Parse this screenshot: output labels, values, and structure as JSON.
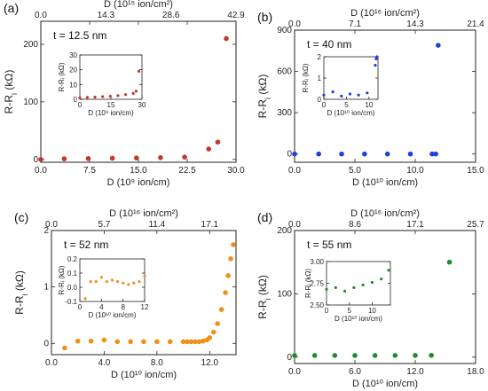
{
  "figure": {
    "panels": [
      {
        "id": "a",
        "label": "(a)",
        "thickness_label": "t = 12.5 nm",
        "color": "#c0392b",
        "ylabel_main": "R-R",
        "ylabel_sub": "i",
        "ylabel_unit": " (kΩ)",
        "xlabel": "D (10⁹ ion/cm)",
        "top_label": "D (10¹⁵ ion/cm²)",
        "xlim": [
          0,
          30
        ],
        "ylim": [
          -5,
          240
        ],
        "xticks": [
          0,
          7.5,
          15,
          22.5,
          30
        ],
        "xtick_labels": [
          "0.0",
          "7.5",
          "15.0",
          "22.5",
          "30.0"
        ],
        "yticks": [
          0,
          100,
          200
        ],
        "ytick_labels": [
          "0",
          "100",
          "200"
        ],
        "top_tick_labels": [
          "0.0",
          "14.3",
          "28.6",
          "42.9"
        ],
        "top_tick_x": [
          0,
          10,
          20,
          30
        ],
        "points": [
          [
            0,
            0
          ],
          [
            3.6,
            1
          ],
          [
            7.3,
            1.5
          ],
          [
            11,
            2
          ],
          [
            14.7,
            2.5
          ],
          [
            18.4,
            3
          ],
          [
            22.1,
            4
          ],
          [
            25.8,
            18
          ],
          [
            27.2,
            30
          ],
          [
            28.5,
            210
          ]
        ],
        "inset": {
          "xlim": [
            0,
            30
          ],
          "ylim": [
            0,
            30
          ],
          "xticks": [
            0,
            15,
            30
          ],
          "xtick_labels": [
            "0",
            "15",
            "30"
          ],
          "yticks": [
            0,
            10,
            20,
            30
          ],
          "ytick_labels": [
            "0",
            "10",
            "20",
            "30"
          ],
          "xlabel": "D (10⁹ ion/cm)",
          "ylabel": "R-Rᵢ (kΩ)",
          "points": [
            [
              0,
              1
            ],
            [
              3.6,
              1.3
            ],
            [
              7.3,
              1.5
            ],
            [
              11,
              1.8
            ],
            [
              14.7,
              2.1
            ],
            [
              18.4,
              2.5
            ],
            [
              22.1,
              3.2
            ],
            [
              25.8,
              4
            ],
            [
              27.2,
              5.5
            ],
            [
              28.5,
              19
            ]
          ]
        }
      },
      {
        "id": "b",
        "label": "(b)",
        "thickness_label": "t = 40 nm",
        "color": "#1f3fd8",
        "ylabel_main": "R-R",
        "ylabel_sub": "i",
        "ylabel_unit": " (kΩ)",
        "xlabel": "D (10¹⁰ ion/cm)",
        "top_label": "D (10¹⁶ ion/cm²)",
        "xlim": [
          0,
          15
        ],
        "ylim": [
          -60,
          900
        ],
        "xticks": [
          0,
          5,
          10,
          15
        ],
        "xtick_labels": [
          "0.0",
          "5.0",
          "10.0",
          "15.0"
        ],
        "yticks": [
          0,
          300,
          600,
          900
        ],
        "ytick_labels": [
          "0",
          "300",
          "600",
          "900"
        ],
        "top_tick_labels": [
          "0.0",
          "7.1",
          "14.3",
          "21.4"
        ],
        "top_tick_x": [
          0,
          5,
          10,
          15
        ],
        "points": [
          [
            0,
            0
          ],
          [
            2,
            0
          ],
          [
            3.9,
            0
          ],
          [
            5.8,
            0
          ],
          [
            7.7,
            0
          ],
          [
            9.6,
            0
          ],
          [
            11.4,
            0
          ],
          [
            11.7,
            0
          ],
          [
            11.9,
            790
          ]
        ],
        "inset": {
          "xlim": [
            0,
            12
          ],
          "ylim": [
            0,
            2
          ],
          "xticks": [
            0,
            5,
            10
          ],
          "xtick_labels": [
            "0",
            "5",
            "10"
          ],
          "yticks": [
            0,
            1,
            2
          ],
          "ytick_labels": [
            "0",
            "1",
            "2"
          ],
          "xlabel": "D (10¹⁰ ion/cm)",
          "ylabel": "R-Rᵢ (kΩ)",
          "points": [
            [
              0,
              0.2
            ],
            [
              2,
              0.35
            ],
            [
              3.9,
              0.15
            ],
            [
              5.8,
              0.25
            ],
            [
              7.7,
              0.2
            ],
            [
              9.6,
              0.3
            ],
            [
              11.4,
              1.6
            ],
            [
              11.6,
              1.9
            ],
            [
              11.8,
              2.0
            ]
          ]
        }
      },
      {
        "id": "c",
        "label": "(c)",
        "thickness_label": "t = 52 nm",
        "color": "#f0901a",
        "ylabel_main": "R-R",
        "ylabel_sub": "i",
        "ylabel_unit": " (kΩ)",
        "xlabel": "D (10¹⁰ ion/cm)",
        "top_label": "D (10¹⁶ ion/cm²)",
        "xlim": [
          0,
          14
        ],
        "ylim": [
          -0.2,
          2
        ],
        "xticks": [
          0,
          4,
          8,
          12
        ],
        "xtick_labels": [
          "0.0",
          "4.0",
          "8.0",
          "12.0"
        ],
        "yticks": [
          0,
          1,
          2
        ],
        "ytick_labels": [
          "0",
          "1",
          "2"
        ],
        "top_tick_labels": [
          "0.0",
          "5.7",
          "11.4",
          "17.1"
        ],
        "top_tick_x": [
          0,
          4,
          8,
          12
        ],
        "points": [
          [
            1,
            -0.08
          ],
          [
            2,
            0.04
          ],
          [
            3,
            0.04
          ],
          [
            4,
            0.06
          ],
          [
            5,
            0.03
          ],
          [
            6,
            0.03
          ],
          [
            7,
            0.03
          ],
          [
            8,
            0.03
          ],
          [
            9,
            0.03
          ],
          [
            10,
            0.03
          ],
          [
            10.3,
            0.03
          ],
          [
            10.6,
            0.03
          ],
          [
            10.9,
            0.03
          ],
          [
            11.2,
            0.03
          ],
          [
            11.5,
            0.04
          ],
          [
            11.8,
            0.06
          ],
          [
            12,
            0.1
          ],
          [
            12.3,
            0.2
          ],
          [
            12.6,
            0.35
          ],
          [
            12.9,
            0.6
          ],
          [
            13.2,
            0.9
          ],
          [
            13.4,
            1.2
          ],
          [
            13.6,
            1.5
          ],
          [
            13.8,
            1.75
          ]
        ],
        "inset": {
          "xlim": [
            0,
            12
          ],
          "ylim": [
            -0.1,
            0.2
          ],
          "xticks": [
            0,
            4,
            8,
            12
          ],
          "xtick_labels": [
            "0",
            "4",
            "8",
            "12"
          ],
          "yticks": [
            -0.1,
            0,
            0.1,
            0.2
          ],
          "ytick_labels": [
            "-0.1",
            "0.0",
            "0.1",
            "0.2"
          ],
          "xlabel": "D (10¹⁰ ion/cm)",
          "ylabel": "R-Rᵢ (kΩ)",
          "points": [
            [
              1,
              -0.08
            ],
            [
              2,
              0.04
            ],
            [
              3,
              0.04
            ],
            [
              4,
              0.07
            ],
            [
              5,
              0.04
            ],
            [
              6,
              0.05
            ],
            [
              7,
              0.04
            ],
            [
              8,
              0.03
            ],
            [
              9,
              0.02
            ],
            [
              10,
              0.03
            ],
            [
              11,
              0.04
            ],
            [
              12,
              0.08
            ]
          ]
        }
      },
      {
        "id": "d",
        "label": "(d)",
        "thickness_label": "t = 55 nm",
        "color": "#1e8c2a",
        "ylabel_main": "R-R",
        "ylabel_sub": "i",
        "ylabel_unit": " (kΩ)",
        "xlabel": "D (10¹⁰ ion/cm)",
        "top_label": "D (10¹⁶ ion/cm²)",
        "xlim": [
          0,
          18
        ],
        "ylim": [
          -10,
          200
        ],
        "xticks": [
          0,
          6,
          12,
          18
        ],
        "xtick_labels": [
          "0.0",
          "6.0",
          "12.0",
          "18.0"
        ],
        "yticks": [
          0,
          100,
          200
        ],
        "ytick_labels": [
          "0",
          "100",
          "200"
        ],
        "top_tick_labels": [
          "0.0",
          "8.6",
          "17.1",
          "25.7"
        ],
        "top_tick_x": [
          0,
          6,
          12,
          18
        ],
        "points": [
          [
            0,
            2.7
          ],
          [
            2,
            2.7
          ],
          [
            4,
            2.7
          ],
          [
            6,
            2.7
          ],
          [
            8,
            2.7
          ],
          [
            10,
            2.7
          ],
          [
            12,
            2.8
          ],
          [
            13.6,
            2.9
          ],
          [
            15.4,
            150
          ]
        ],
        "inset": {
          "xlim": [
            0,
            14
          ],
          "ylim": [
            2.5,
            3.0
          ],
          "xticks": [
            0,
            5,
            10
          ],
          "xtick_labels": [
            "0",
            "5",
            "10"
          ],
          "yticks": [
            2.5,
            2.75,
            3.0
          ],
          "ytick_labels": [
            "2.50",
            "2.75",
            "3.00"
          ],
          "xlabel": "D (10¹⁰ ion/cm)",
          "ylabel": "R-Rᵢ (kΩ)",
          "points": [
            [
              0,
              2.68
            ],
            [
              2,
              2.7
            ],
            [
              4,
              2.66
            ],
            [
              6,
              2.7
            ],
            [
              8,
              2.73
            ],
            [
              10,
              2.76
            ],
            [
              12,
              2.8
            ],
            [
              13.6,
              2.9
            ]
          ]
        }
      }
    ]
  },
  "chart_data": [
    {
      "type": "scatter",
      "panel": "(a)",
      "annotation": "t = 12.5 nm",
      "xlabel": "D (10⁹ ion/cm)",
      "ylabel": "R-Rᵢ (kΩ)",
      "top_xlabel": "D (10¹⁵ ion/cm²)",
      "xlim": [
        0,
        30
      ],
      "ylim": [
        -5,
        240
      ],
      "x": [
        0,
        3.6,
        7.3,
        11,
        14.7,
        18.4,
        22.1,
        25.8,
        27.2,
        28.5
      ],
      "y": [
        0,
        1,
        1.5,
        2,
        2.5,
        3,
        4,
        18,
        30,
        210
      ]
    },
    {
      "type": "scatter",
      "panel": "(b)",
      "annotation": "t = 40 nm",
      "xlabel": "D (10¹⁰ ion/cm)",
      "ylabel": "R-Rᵢ (kΩ)",
      "top_xlabel": "D (10¹⁶ ion/cm²)",
      "xlim": [
        0,
        15
      ],
      "ylim": [
        -60,
        900
      ],
      "x": [
        0,
        2,
        3.9,
        5.8,
        7.7,
        9.6,
        11.4,
        11.7,
        11.9
      ],
      "y": [
        0,
        0,
        0,
        0,
        0,
        0,
        0,
        0,
        790
      ]
    },
    {
      "type": "scatter",
      "panel": "(c)",
      "annotation": "t = 52 nm",
      "xlabel": "D (10¹⁰ ion/cm)",
      "ylabel": "R-Rᵢ (kΩ)",
      "top_xlabel": "D (10¹⁶ ion/cm²)",
      "xlim": [
        0,
        14
      ],
      "ylim": [
        -0.2,
        2
      ],
      "x": [
        1,
        2,
        3,
        4,
        5,
        6,
        7,
        8,
        9,
        10,
        10.3,
        10.6,
        10.9,
        11.2,
        11.5,
        11.8,
        12,
        12.3,
        12.6,
        12.9,
        13.2,
        13.4,
        13.6,
        13.8
      ],
      "y": [
        -0.08,
        0.04,
        0.04,
        0.06,
        0.03,
        0.03,
        0.03,
        0.03,
        0.03,
        0.03,
        0.03,
        0.03,
        0.03,
        0.03,
        0.04,
        0.06,
        0.1,
        0.2,
        0.35,
        0.6,
        0.9,
        1.2,
        1.5,
        1.75
      ]
    },
    {
      "type": "scatter",
      "panel": "(d)",
      "annotation": "t = 55 nm",
      "xlabel": "D (10¹⁰ ion/cm)",
      "ylabel": "R-Rᵢ (kΩ)",
      "top_xlabel": "D (10¹⁶ ion/cm²)",
      "xlim": [
        0,
        18
      ],
      "ylim": [
        -10,
        200
      ],
      "x": [
        0,
        2,
        4,
        6,
        8,
        10,
        12,
        13.6,
        15.4
      ],
      "y": [
        2.7,
        2.7,
        2.7,
        2.7,
        2.7,
        2.7,
        2.8,
        2.9,
        150
      ]
    }
  ]
}
